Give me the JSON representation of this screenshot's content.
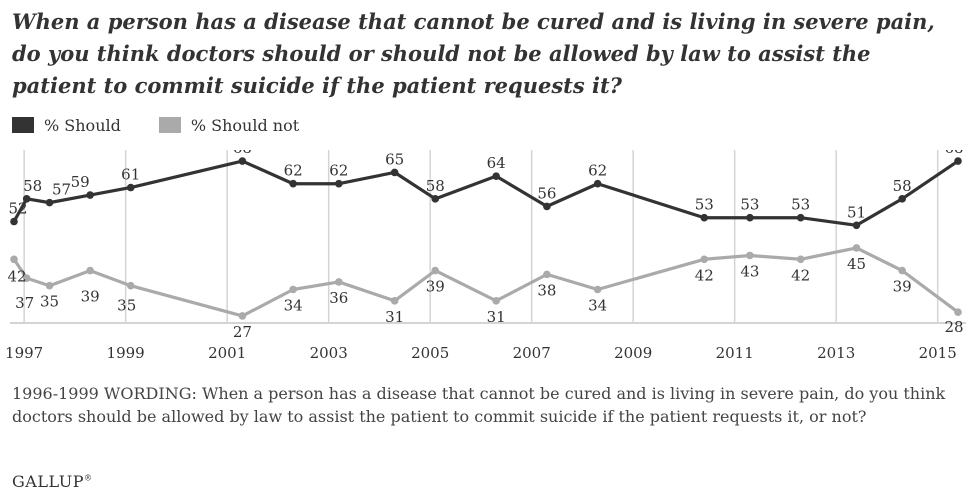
{
  "title": "When a person has a disease that cannot be cured and is living in severe pain, do you think doctors should or should not be allowed by law to assist the patient to commit suicide if the patient requests it?",
  "note": "1996-1999 WORDING: When a person has a disease that cannot be cured and is living in severe pain, do you think doctors should be allowed by law to assist the patient to commit suicide if the patient requests it, or not?",
  "brand": "GALLUP",
  "colors": {
    "should": "#333333",
    "should_not": "#aaaaaa",
    "grid": "#d4d4d4",
    "text": "#333333"
  },
  "chart_data": {
    "type": "line",
    "x_ticks": [
      "1997",
      "1999",
      "2001",
      "2003",
      "2005",
      "2007",
      "2009",
      "2011",
      "2013",
      "2015"
    ],
    "x": [
      1996.8,
      1997.05,
      1997.5,
      1998.3,
      1999.1,
      2001.3,
      2002.3,
      2003.2,
      2004.3,
      2005.1,
      2006.3,
      2007.3,
      2008.3,
      2010.4,
      2011.3,
      2012.3,
      2013.4,
      2014.3,
      2015.4
    ],
    "series": [
      {
        "name": "% Should",
        "values": [
          52,
          58,
          57,
          59,
          61,
          68,
          62,
          62,
          65,
          58,
          64,
          56,
          62,
          53,
          53,
          53,
          51,
          58,
          68
        ]
      },
      {
        "name": "% Should not",
        "values": [
          42,
          37,
          35,
          39,
          35,
          27,
          34,
          36,
          31,
          39,
          31,
          38,
          34,
          42,
          43,
          42,
          45,
          39,
          28
        ]
      }
    ],
    "legend_position": "top-left",
    "grid": "vertical"
  }
}
